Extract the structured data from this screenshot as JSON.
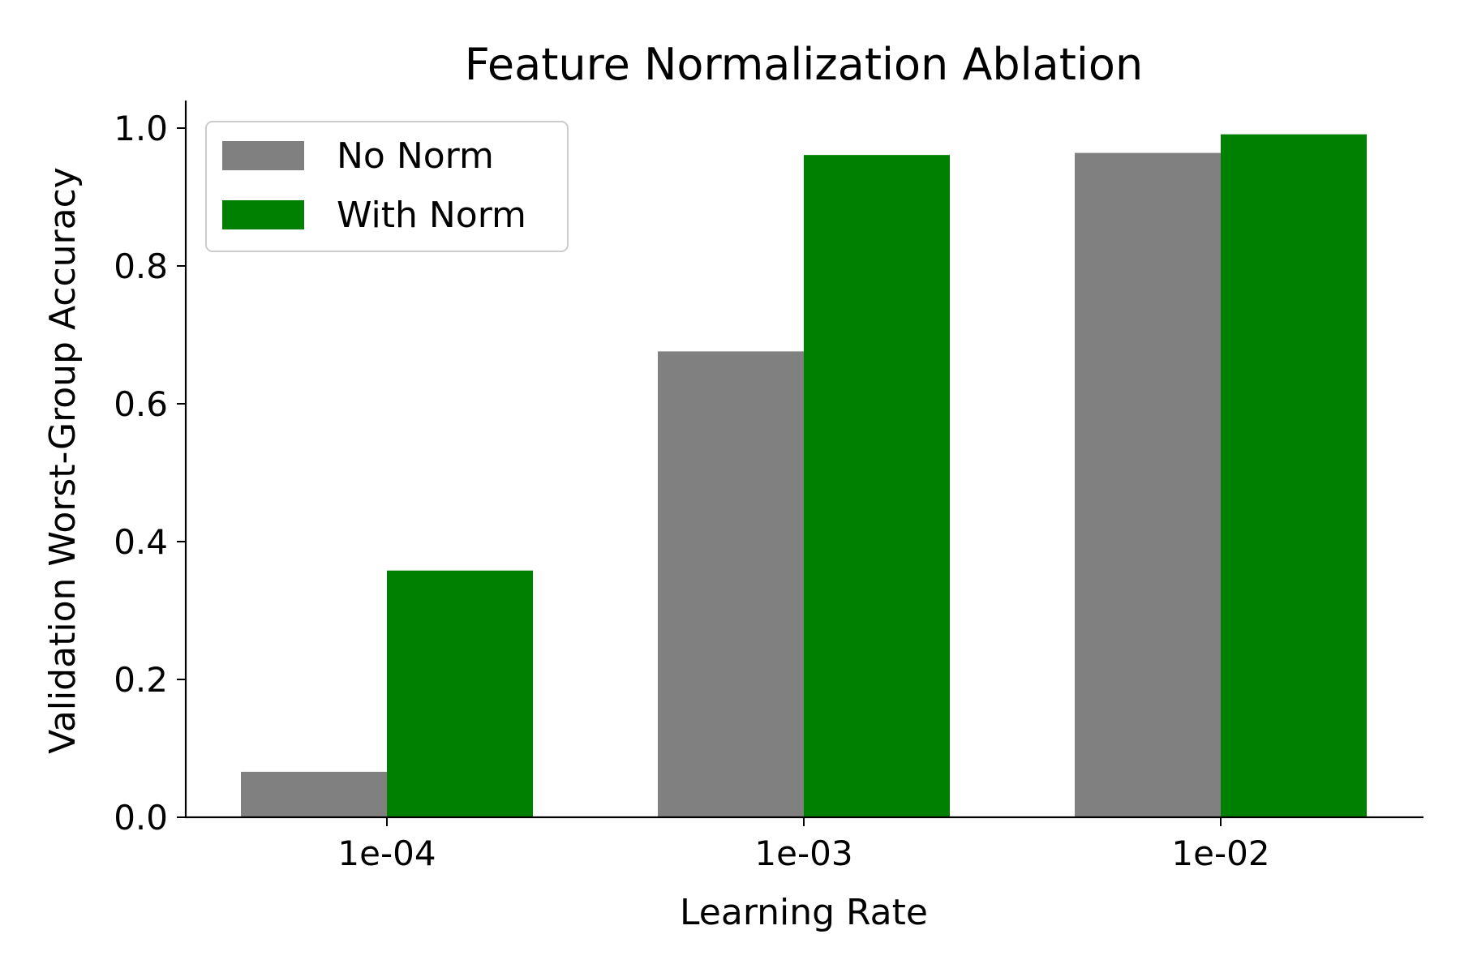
{
  "chart_data": {
    "type": "bar",
    "title": "Feature Normalization Ablation",
    "xlabel": "Learning Rate",
    "ylabel": "Validation Worst-Group Accuracy",
    "categories": [
      "1e-04",
      "1e-03",
      "1e-02"
    ],
    "series": [
      {
        "name": "No Norm",
        "color": "#808080",
        "values": [
          0.066,
          0.676,
          0.964
        ]
      },
      {
        "name": "With Norm",
        "color": "#008000",
        "values": [
          0.358,
          0.961,
          0.991
        ]
      }
    ],
    "ylim": [
      0,
      1.04
    ],
    "yticks": [
      0.0,
      0.2,
      0.4,
      0.6,
      0.8,
      1.0
    ],
    "ytick_labels": [
      "0.0",
      "0.2",
      "0.4",
      "0.6",
      "0.8",
      "1.0"
    ],
    "grid": false,
    "legend_position": "top-left"
  }
}
